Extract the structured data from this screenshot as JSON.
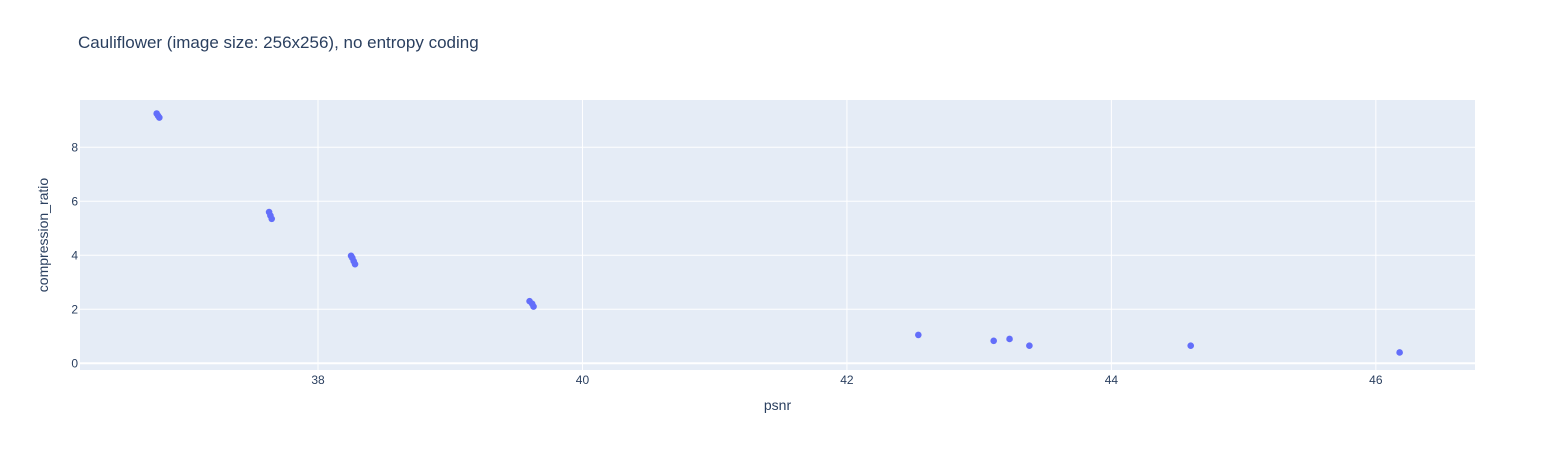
{
  "chart_data": {
    "type": "scatter",
    "title": "Cauliflower (image size: 256x256), no entropy coding",
    "xlabel": "psnr",
    "ylabel": "compression_ratio",
    "xlim": [
      36.2,
      46.75
    ],
    "ylim": [
      -0.25,
      9.75
    ],
    "xticks": [
      38,
      40,
      42,
      44,
      46
    ],
    "yticks": [
      0,
      2,
      4,
      6,
      8
    ],
    "grid": true,
    "marker_color": "#636efa",
    "plot_background": "#e5ecf6",
    "series": [
      {
        "points": [
          {
            "x": 36.78,
            "y": 9.25
          },
          {
            "x": 36.79,
            "y": 9.17
          },
          {
            "x": 36.8,
            "y": 9.1
          },
          {
            "x": 37.63,
            "y": 5.6
          },
          {
            "x": 37.64,
            "y": 5.47
          },
          {
            "x": 37.65,
            "y": 5.35
          },
          {
            "x": 38.25,
            "y": 3.98
          },
          {
            "x": 38.26,
            "y": 3.9
          },
          {
            "x": 38.27,
            "y": 3.78
          },
          {
            "x": 38.28,
            "y": 3.67
          },
          {
            "x": 39.6,
            "y": 2.3
          },
          {
            "x": 39.62,
            "y": 2.2
          },
          {
            "x": 39.63,
            "y": 2.1
          },
          {
            "x": 42.54,
            "y": 1.05
          },
          {
            "x": 43.11,
            "y": 0.83
          },
          {
            "x": 43.23,
            "y": 0.9
          },
          {
            "x": 43.38,
            "y": 0.65
          },
          {
            "x": 44.6,
            "y": 0.65
          },
          {
            "x": 46.18,
            "y": 0.4
          }
        ]
      }
    ]
  }
}
